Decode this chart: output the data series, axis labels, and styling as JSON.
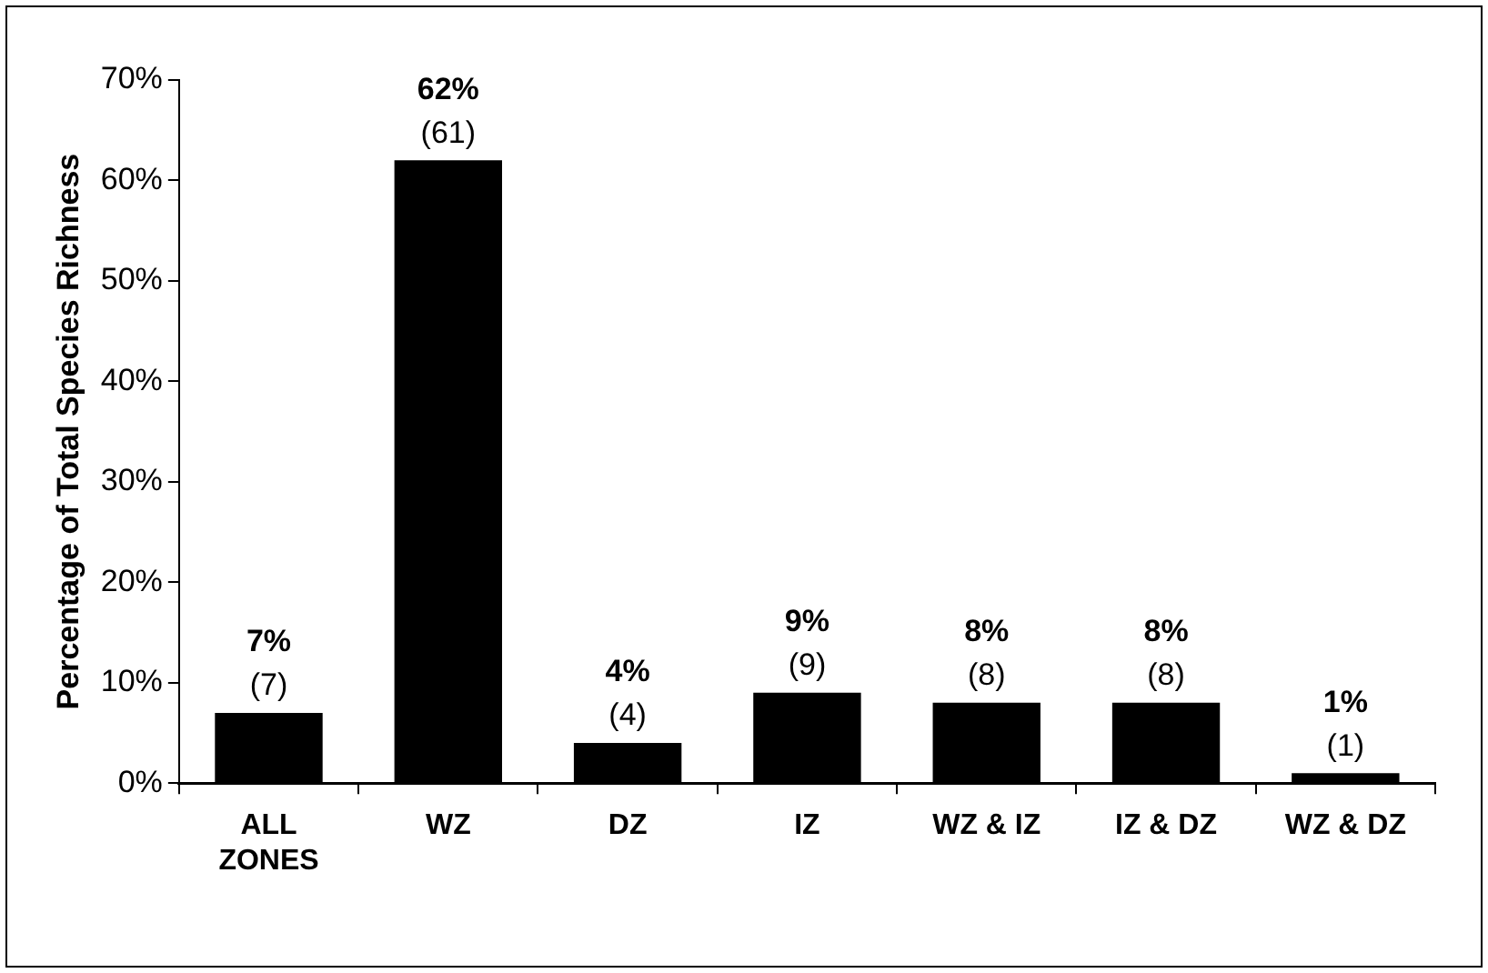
{
  "chart_data": {
    "type": "bar",
    "ylabel": "Percentage of Total Species Richness",
    "categories": [
      "ALL ZONES",
      "WZ",
      "DZ",
      "IZ",
      "WZ & IZ",
      "IZ & DZ",
      "WZ & DZ"
    ],
    "values": [
      7,
      62,
      4,
      9,
      8,
      8,
      1
    ],
    "color": "#000000",
    "value_labels": [
      "7%",
      "62%",
      "4%",
      "9%",
      "8%",
      "8%",
      "1%"
    ],
    "annotations": [
      {
        "text": "(7)",
        "x": "ALL ZONES",
        "y": 7
      },
      {
        "text": "(61)",
        "x": "WZ",
        "y": 62
      },
      {
        "text": "(4)",
        "x": "DZ",
        "y": 4
      },
      {
        "text": "(9)",
        "x": "IZ",
        "y": 9
      },
      {
        "text": "(8)",
        "x": "WZ & IZ",
        "y": 8
      },
      {
        "text": "(8)",
        "x": "IZ & DZ",
        "y": 8
      },
      {
        "text": "(1)",
        "x": "WZ & DZ",
        "y": 1
      }
    ],
    "ylim": [
      0,
      70
    ],
    "yticks": [
      {
        "value": 0,
        "label": "0%"
      },
      {
        "value": 10,
        "label": "10%"
      },
      {
        "value": 20,
        "label": "20%"
      },
      {
        "value": 30,
        "label": "30%"
      },
      {
        "value": 40,
        "label": "40%"
      },
      {
        "value": 50,
        "label": "50%"
      },
      {
        "value": 60,
        "label": "60%"
      },
      {
        "value": 70,
        "label": "70%"
      }
    ],
    "grid": false,
    "legend": false
  }
}
